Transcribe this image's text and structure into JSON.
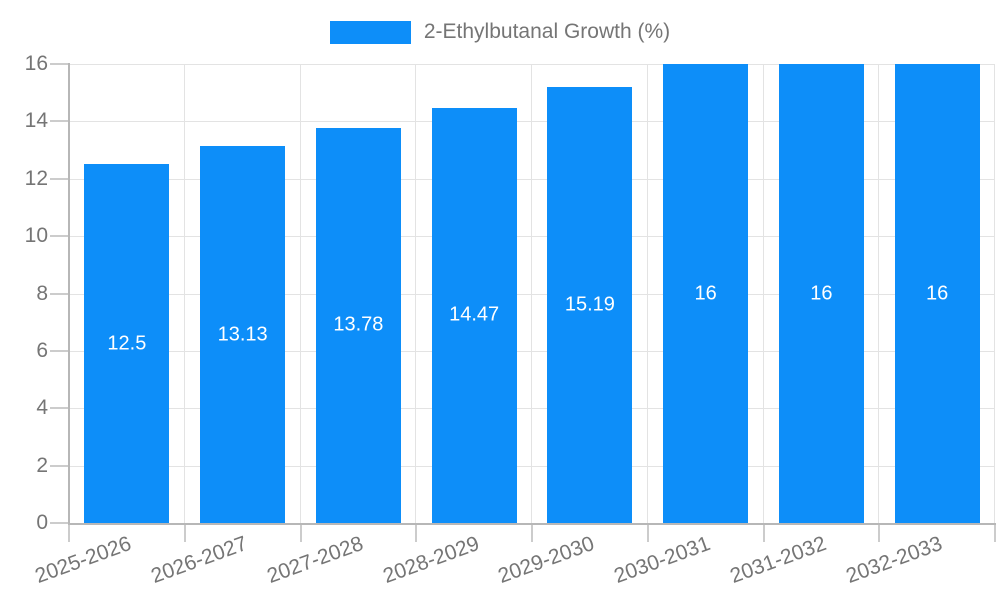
{
  "chart_data": {
    "type": "bar",
    "title": "",
    "legend": "2-Ethylbutanal Growth (%)",
    "categories": [
      "2025-2026",
      "2026-2027",
      "2027-2028",
      "2028-2029",
      "2029-2030",
      "2030-2031",
      "2031-2032",
      "2032-2033"
    ],
    "values": [
      12.5,
      13.13,
      13.78,
      14.47,
      15.19,
      16,
      16,
      16
    ],
    "value_labels": [
      "12.5",
      "13.13",
      "13.78",
      "14.47",
      "15.19",
      "16",
      "16",
      "16"
    ],
    "xlabel": "",
    "ylabel": "",
    "ylim": [
      0,
      16
    ],
    "y_ticks": [
      0,
      2,
      4,
      6,
      8,
      10,
      12,
      14,
      16
    ],
    "grid": true,
    "legend_position": "top-center",
    "colors": {
      "bar": "#0d8ef9",
      "bar_value_label": "#ffffff",
      "axis_text": "#757575",
      "axis_line": "#b7b7b7",
      "gridline": "#e3e3e3",
      "tick_mark": "#cccccc",
      "background": "#ffffff"
    }
  }
}
